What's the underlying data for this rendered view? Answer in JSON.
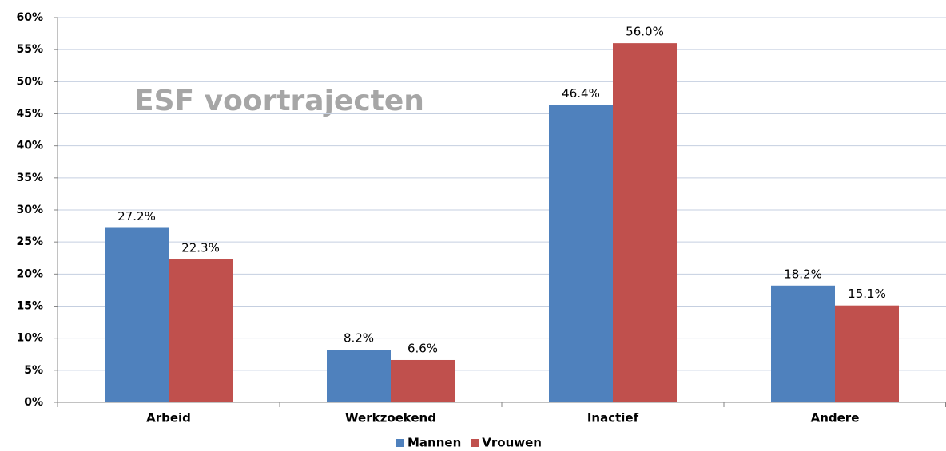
{
  "chart_data": {
    "type": "bar",
    "title": "ESF voortrajecten",
    "categories": [
      "Arbeid",
      "Werkzoekend",
      "Inactief",
      "Andere"
    ],
    "series": [
      {
        "name": "Mannen",
        "color": "#4f81bd",
        "values": [
          27.2,
          8.2,
          46.4,
          18.2
        ],
        "value_labels": [
          "27.2%",
          "8.2%",
          "46.4%",
          "18.2%"
        ]
      },
      {
        "name": "Vrouwen",
        "color": "#c0504d",
        "values": [
          22.3,
          6.6,
          56.0,
          15.1
        ],
        "value_labels": [
          "22.3%",
          "6.6%",
          "56.0%",
          "15.1%"
        ]
      }
    ],
    "ylim": [
      0,
      60
    ],
    "yticks": [
      {
        "value": 0,
        "label": "0%"
      },
      {
        "value": 5,
        "label": "5%"
      },
      {
        "value": 10,
        "label": "10%"
      },
      {
        "value": 15,
        "label": "15%"
      },
      {
        "value": 20,
        "label": "20%"
      },
      {
        "value": 25,
        "label": "25%"
      },
      {
        "value": 30,
        "label": "30%"
      },
      {
        "value": 35,
        "label": "35%"
      },
      {
        "value": 40,
        "label": "40%"
      },
      {
        "value": 45,
        "label": "45%"
      },
      {
        "value": 50,
        "label": "50%"
      },
      {
        "value": 55,
        "label": "55%"
      },
      {
        "value": 60,
        "label": "60%"
      }
    ],
    "grid": true,
    "legend": "bottom"
  }
}
